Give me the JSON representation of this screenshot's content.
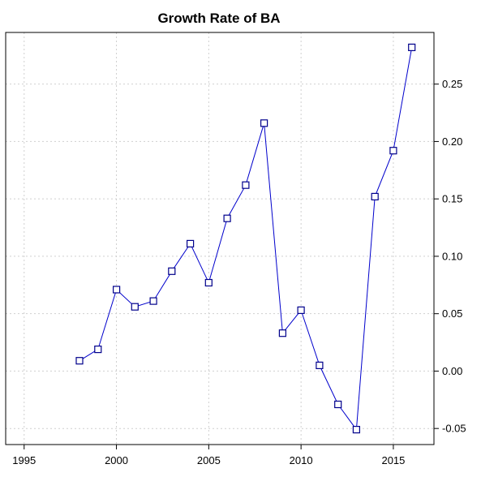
{
  "chart_data": {
    "type": "line",
    "title": "Growth Rate of BA",
    "xlabel": "",
    "ylabel": "",
    "x": [
      1998,
      1999,
      2000,
      2001,
      2002,
      2003,
      2004,
      2005,
      2006,
      2007,
      2008,
      2009,
      2010,
      2011,
      2012,
      2013,
      2014,
      2015,
      2016
    ],
    "series": [
      {
        "values": [
          0.009,
          0.019,
          0.071,
          0.056,
          0.061,
          0.087,
          0.111,
          0.077,
          0.133,
          0.162,
          0.216,
          0.033,
          0.053,
          0.005,
          -0.029,
          -0.051,
          0.152,
          0.192,
          0.282
        ]
      }
    ],
    "xlim": [
      1994,
      2017.2
    ],
    "ylim": [
      -0.064,
      0.295
    ],
    "x_ticks": [
      "1995",
      "2000",
      "2005",
      "2010",
      "2015"
    ],
    "y_ticks": [
      "-0.05",
      "0.00",
      "0.05",
      "0.10",
      "0.15",
      "0.20",
      "0.25"
    ],
    "y_axis_side": "right",
    "grid": true,
    "marker": "open-square",
    "colors": {
      "line": "#0000cc",
      "marker": "#00008b",
      "grid": "#cfcfcf"
    }
  }
}
